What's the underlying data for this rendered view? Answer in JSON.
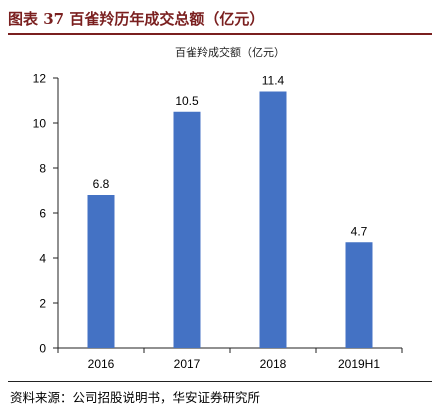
{
  "figure": {
    "title": "图表 37  百雀羚历年成交总额（亿元）",
    "source": "资料来源：公司招股说明书，华安证券研究所"
  },
  "colors": {
    "bar": "#4472C4",
    "title": "#7a1f1f",
    "axis": "#222222"
  },
  "chart_data": {
    "type": "bar",
    "title": "百雀羚成交额（亿元）",
    "categories": [
      "2016",
      "2017",
      "2018",
      "2019H1"
    ],
    "values": [
      6.8,
      10.5,
      11.4,
      4.7
    ],
    "value_labels": [
      "6.8",
      "10.5",
      "11.4",
      "4.7"
    ],
    "ylim": [
      0,
      12
    ],
    "yticks": [
      0,
      2,
      4,
      6,
      8,
      10,
      12
    ],
    "xlabel": "",
    "ylabel": "",
    "grid": false,
    "legend": "none"
  }
}
